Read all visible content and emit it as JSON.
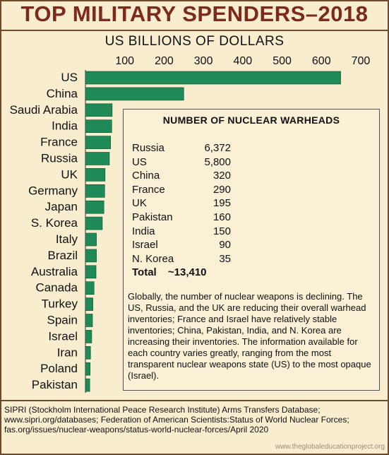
{
  "title": "TOP MILITARY SPENDERS–2018",
  "chart_data": {
    "type": "bar",
    "orientation": "horizontal",
    "xlabel": "US BILLIONS OF DOLLARS",
    "xlim": [
      0,
      700
    ],
    "xticks": [
      100,
      200,
      300,
      400,
      500,
      600,
      700
    ],
    "categories": [
      "US",
      "China",
      "Saudi Arabia",
      "India",
      "France",
      "Russia",
      "UK",
      "Germany",
      "Japan",
      "S. Korea",
      "Italy",
      "Brazil",
      "Australia",
      "Canada",
      "Turkey",
      "Spain",
      "Israel",
      "Iran",
      "Poland",
      "Pakistan"
    ],
    "values": [
      649,
      250,
      68,
      67,
      64,
      61,
      50,
      49,
      47,
      43,
      28,
      28,
      27,
      22,
      19,
      18,
      16,
      13,
      12,
      11
    ],
    "bar_color": "#1f8a58",
    "grid": false
  },
  "warheads": {
    "title": "NUMBER OF NUCLEAR WARHEADS",
    "rows": [
      {
        "country": "Russia",
        "count": "6,372"
      },
      {
        "country": "US",
        "count": "5,800"
      },
      {
        "country": "China",
        "count": "320"
      },
      {
        "country": "France",
        "count": "290"
      },
      {
        "country": "UK",
        "count": "195"
      },
      {
        "country": "Pakistan",
        "count": "160"
      },
      {
        "country": "India",
        "count": "150"
      },
      {
        "country": "Israel",
        "count": "90"
      },
      {
        "country": "N. Korea",
        "count": "35"
      }
    ],
    "total_label": "Total",
    "total_value": "~13,410",
    "text": "Globally, the number of nuclear weapons is declining. The US, Russia, and the UK are reducing their overall warhead inventories; France and Israel have relatively stable inventories; China, Pakistan, India, and N. Korea are increasing their inventories. The information available for each country varies greatly, ranging from the most transparent nuclear weapons state (US) to the most opaque (Israel)."
  },
  "source": "SIPRI (Stockholm International Peace Research Institute) Arms Transfers Database; www.sipri.org/databases; Federation of American Scientists:Status of World Nuclear Forces; fas.org/issues/nuclear-weapons/status-world-nuclear-forces/April 2020",
  "credit": "www.theglobaleducationproject.org"
}
